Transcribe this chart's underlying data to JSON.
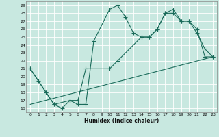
{
  "xlabel": "Humidex (Indice chaleur)",
  "bg_color": "#c8e8e0",
  "line_color": "#1a6b5a",
  "grid_color": "#b0d8d0",
  "xlim": [
    -0.5,
    23.5
  ],
  "ylim": [
    15.5,
    29.5
  ],
  "yticks": [
    16,
    17,
    18,
    19,
    20,
    21,
    22,
    23,
    24,
    25,
    26,
    27,
    28,
    29
  ],
  "xticks": [
    0,
    1,
    2,
    3,
    4,
    5,
    6,
    7,
    8,
    9,
    10,
    11,
    12,
    13,
    14,
    15,
    16,
    17,
    18,
    19,
    20,
    21,
    22,
    23
  ],
  "line1_x": [
    0,
    1,
    2,
    3,
    4,
    5,
    6,
    7,
    8,
    10,
    11,
    12,
    13,
    14,
    15,
    16,
    17,
    18,
    19,
    20,
    21,
    22,
    23
  ],
  "line1_y": [
    21,
    19.5,
    18,
    16.5,
    16,
    17,
    16.5,
    16.5,
    24.5,
    28.5,
    29,
    27.5,
    25.5,
    25,
    25,
    26,
    28,
    28.5,
    27,
    27,
    25.5,
    23.5,
    22.5
  ],
  "line2_x": [
    0,
    2,
    3,
    5,
    6,
    7,
    10,
    11,
    14,
    15,
    16,
    17,
    18,
    19,
    20,
    21,
    22,
    23
  ],
  "line2_y": [
    21,
    18,
    16.5,
    17,
    17,
    21,
    21,
    22,
    25,
    25,
    26,
    28,
    28,
    27,
    27,
    26,
    22.5,
    22.5
  ],
  "line3_x": [
    0,
    23
  ],
  "line3_y": [
    16.5,
    22.5
  ],
  "marker": "+",
  "marker_size": 5
}
